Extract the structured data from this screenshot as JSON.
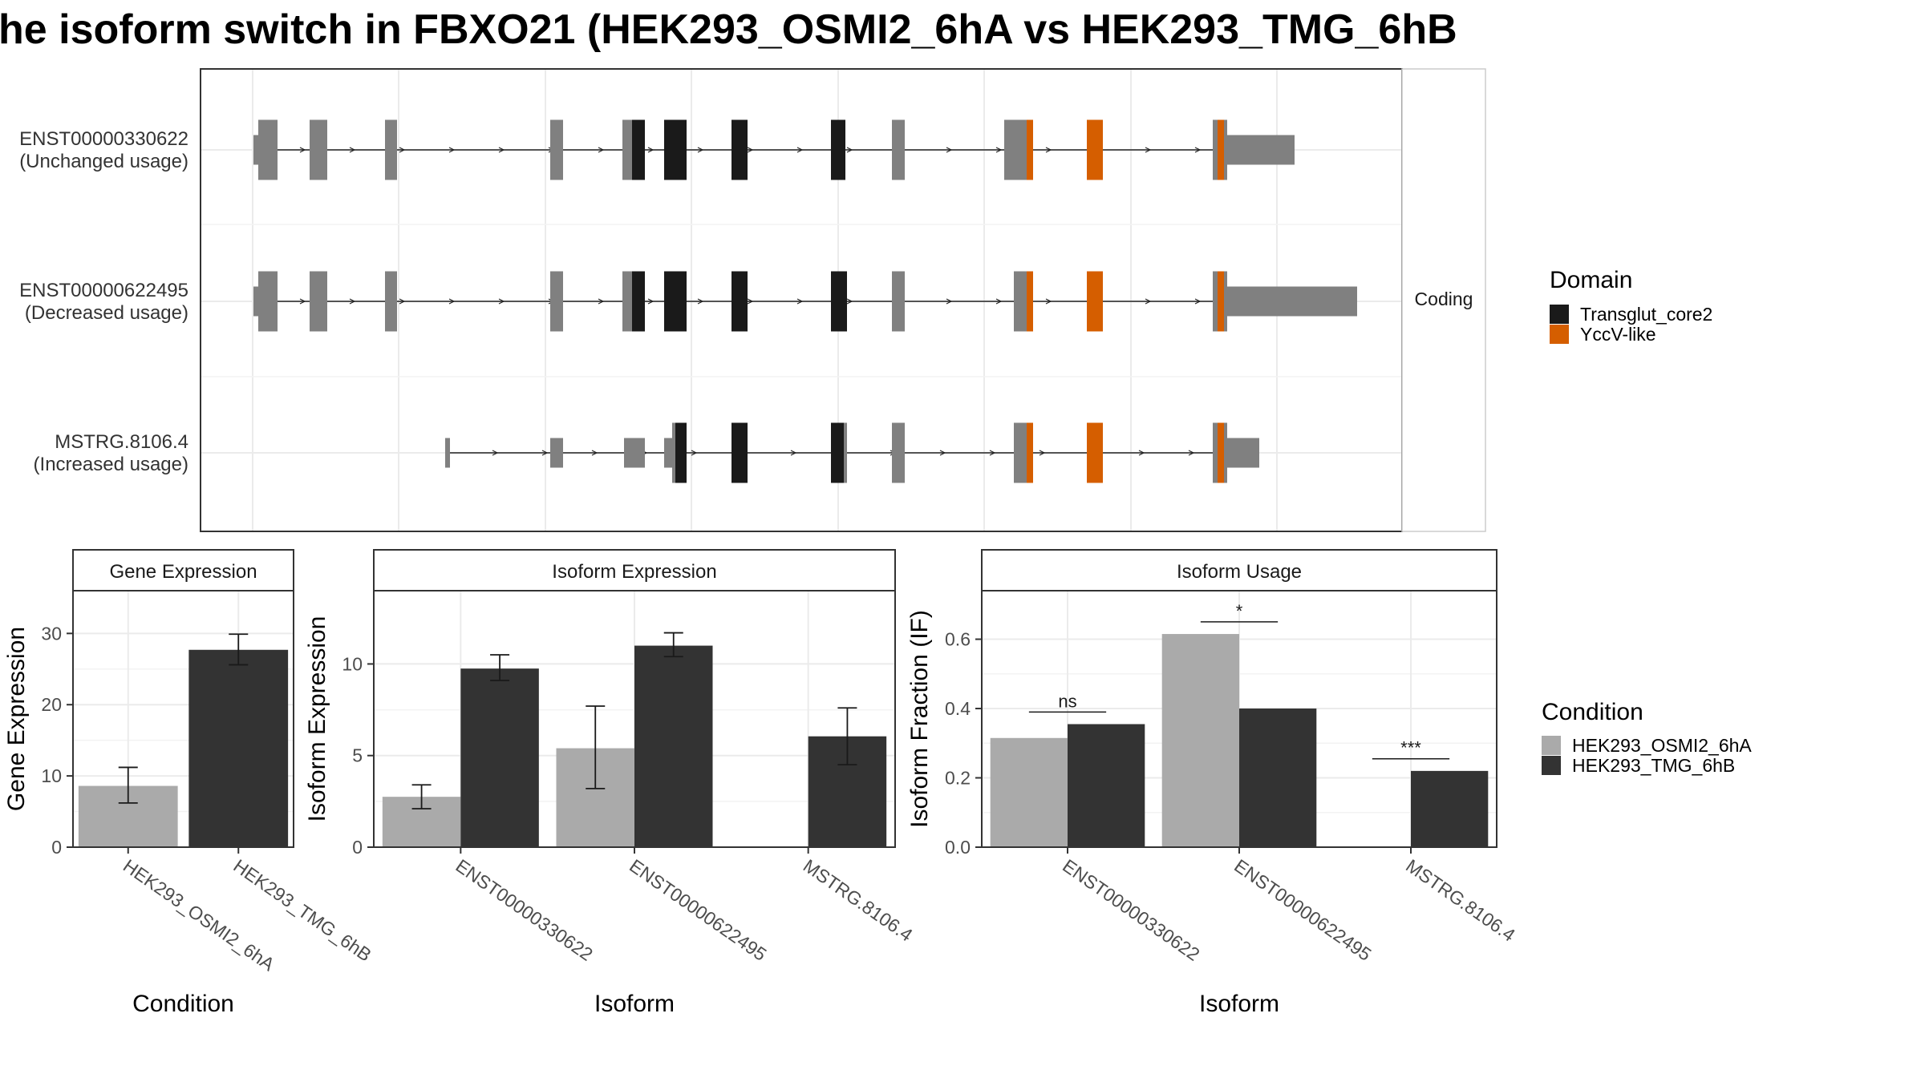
{
  "title": "he isoform switch in FBXO21 (HEK293_OSMI2_6hA vs HEK293_TMG_6hB",
  "colors": {
    "exon_grey": "#808080",
    "transglut": "#1a1a1a",
    "yccv": "#d55e00",
    "cond_a": "#aaaaaa",
    "cond_b": "#333333",
    "strip_bg": "#ffffff",
    "grid": "#ebebeb"
  },
  "transcripts": {
    "items": [
      {
        "id": "ENST00000330622",
        "usage": "(Unchanged usage)"
      },
      {
        "id": "ENST00000622495",
        "usage": "(Decreased usage)"
      },
      {
        "id": "MSTRG.8106.4",
        "usage": "(Increased usage)"
      }
    ],
    "strip_label": "Coding"
  },
  "legend_domain": {
    "title": "Domain",
    "items": [
      {
        "label": "Transglut_core2",
        "color": "#1a1a1a"
      },
      {
        "label": "YccV-like",
        "color": "#d55e00"
      }
    ]
  },
  "legend_condition": {
    "title": "Condition",
    "items": [
      {
        "label": "HEK293_OSMI2_6hA",
        "color": "#aaaaaa"
      },
      {
        "label": "HEK293_TMG_6hB",
        "color": "#333333"
      }
    ]
  },
  "chart_data": [
    {
      "type": "bar",
      "title": "Gene Expression",
      "xlabel": "Condition",
      "ylabel": "Gene Expression",
      "categories": [
        "HEK293_OSMI2_6hA",
        "HEK293_TMG_6hB"
      ],
      "values": [
        8.6,
        27.7
      ],
      "error_low": [
        6.2,
        25.6
      ],
      "error_high": [
        11.2,
        29.9
      ],
      "ylim": [
        0,
        36
      ],
      "yticks": [
        0,
        10,
        20,
        30
      ],
      "grid": true
    },
    {
      "type": "bar",
      "title": "Isoform Expression",
      "xlabel": "Isoform",
      "ylabel": "Isoform Expression",
      "categories": [
        "ENST00000330622",
        "ENST00000622495",
        "MSTRG.8106.4"
      ],
      "series": [
        {
          "name": "HEK293_OSMI2_6hA",
          "values": [
            2.75,
            5.4,
            0.0
          ],
          "error_low": [
            2.1,
            3.2,
            0.0
          ],
          "error_high": [
            3.4,
            7.7,
            0.0
          ]
        },
        {
          "name": "HEK293_TMG_6hB",
          "values": [
            9.75,
            11.0,
            6.05
          ],
          "error_low": [
            9.1,
            10.4,
            4.5
          ],
          "error_high": [
            10.5,
            11.7,
            7.6
          ]
        }
      ],
      "ylim": [
        0,
        14
      ],
      "yticks": [
        0,
        5,
        10
      ],
      "grid": true
    },
    {
      "type": "bar",
      "title": "Isoform Usage",
      "xlabel": "Isoform",
      "ylabel": "Isoform Fraction (IF)",
      "categories": [
        "ENST00000330622",
        "ENST00000622495",
        "MSTRG.8106.4"
      ],
      "series": [
        {
          "name": "HEK293_OSMI2_6hA",
          "values": [
            0.315,
            0.615,
            0.0
          ]
        },
        {
          "name": "HEK293_TMG_6hB",
          "values": [
            0.355,
            0.4,
            0.22
          ]
        }
      ],
      "significance": [
        "ns",
        "*",
        "***"
      ],
      "ylim": [
        0,
        0.74
      ],
      "yticks": [
        "0.0",
        "0.2",
        "0.4",
        "0.6"
      ],
      "grid": true
    }
  ]
}
